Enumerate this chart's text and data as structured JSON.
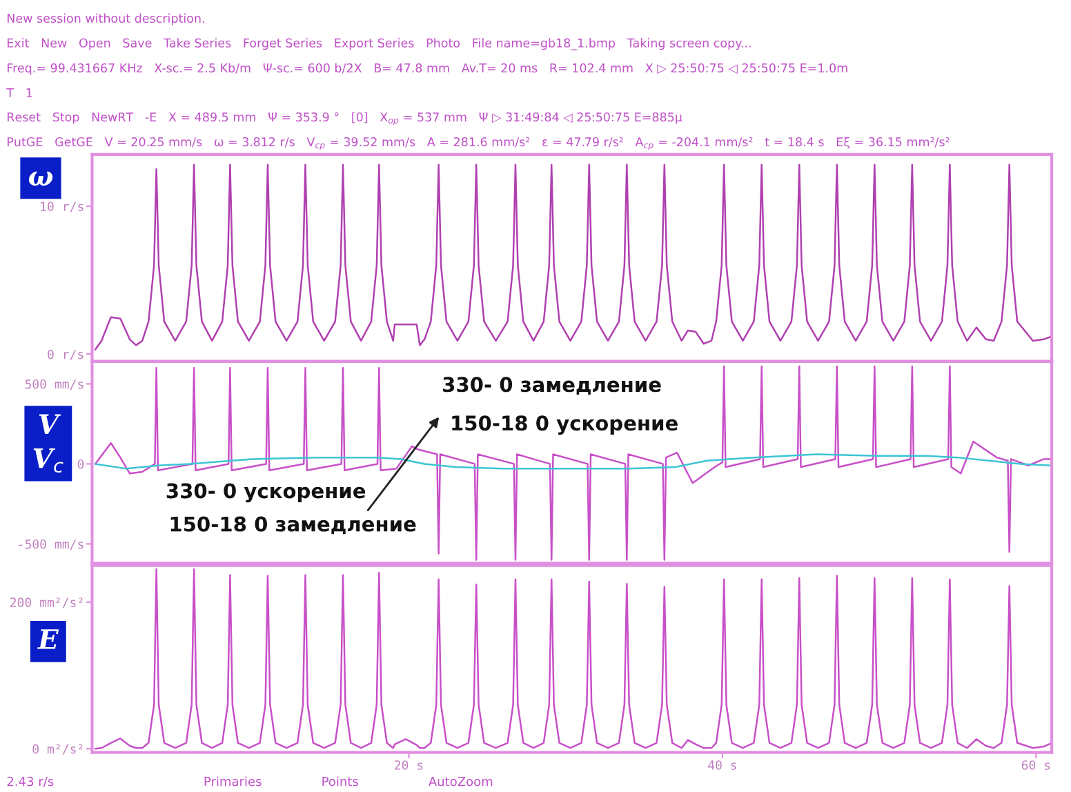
{
  "chart_data": [
    {
      "type": "line",
      "ylabel": "ω",
      "x": [
        0,
        0.4,
        1.0,
        1.6,
        2.2,
        2.6,
        3.0,
        3.4,
        3.75,
        3.9,
        4.05,
        4.4,
        5.1,
        5.8,
        6.15,
        6.3,
        6.45,
        6.8,
        7.45,
        8.1,
        8.45,
        8.6,
        8.75,
        9.1,
        9.8,
        10.5,
        10.85,
        11.0,
        11.15,
        11.5,
        12.2,
        12.9,
        13.25,
        13.4,
        13.55,
        13.9,
        14.6,
        15.3,
        15.65,
        15.8,
        15.95,
        16.3,
        16.95,
        17.6,
        17.95,
        18.1,
        18.25,
        18.6,
        19.0,
        19.1,
        19.8,
        20.5,
        20.7,
        21.0,
        21.4,
        21.75,
        21.9,
        22.05,
        22.4,
        23.1,
        23.8,
        24.15,
        24.3,
        24.45,
        24.8,
        25.55,
        26.3,
        26.65,
        26.8,
        26.95,
        27.3,
        27.95,
        28.6,
        28.95,
        29.1,
        29.25,
        29.6,
        30.3,
        31.0,
        31.35,
        31.5,
        31.65,
        32.0,
        32.7,
        33.4,
        33.75,
        33.9,
        34.05,
        34.4,
        35.1,
        35.8,
        36.15,
        36.3,
        36.45,
        36.8,
        37.4,
        37.8,
        38.3,
        38.8,
        39.3,
        39.6,
        39.95,
        40.1,
        40.25,
        40.6,
        41.3,
        42.0,
        42.35,
        42.5,
        42.65,
        43.0,
        43.7,
        44.4,
        44.75,
        44.9,
        45.05,
        45.4,
        46.1,
        46.8,
        47.15,
        47.3,
        47.45,
        47.8,
        48.5,
        49.2,
        49.55,
        49.7,
        49.85,
        50.2,
        50.9,
        51.6,
        51.95,
        52.1,
        52.25,
        52.6,
        53.3,
        54.0,
        54.35,
        54.5,
        54.65,
        55.0,
        55.6,
        56.2,
        56.8,
        57.3,
        57.8,
        58.15,
        58.3,
        58.45,
        58.8,
        59.8,
        60.5,
        61.0
      ],
      "series": [
        {
          "color": "#b040b0",
          "values": [
            0.3,
            0.9,
            2.5,
            2.4,
            1.0,
            0.6,
            0.9,
            2.2,
            6,
            12.5,
            6,
            2.2,
            0.9,
            2.2,
            6,
            12.8,
            6,
            2.2,
            0.9,
            2.2,
            6,
            12.8,
            6,
            2.2,
            0.9,
            2.2,
            6,
            12.8,
            6,
            2.2,
            0.9,
            2.2,
            6,
            12.8,
            6,
            2.2,
            0.9,
            2.2,
            6,
            12.8,
            6,
            2.2,
            0.9,
            2.2,
            6,
            12.8,
            6,
            2.2,
            0.9,
            2.0,
            2.0,
            2.0,
            0.6,
            1.0,
            2.2,
            6,
            12.8,
            6,
            2.2,
            0.9,
            2.2,
            6,
            12.8,
            6,
            2.2,
            0.9,
            2.2,
            6,
            12.8,
            6,
            2.2,
            0.9,
            2.2,
            6,
            12.8,
            6,
            2.2,
            0.9,
            2.2,
            6,
            12.8,
            6,
            2.2,
            0.9,
            2.2,
            6,
            12.8,
            6,
            2.2,
            0.9,
            2.2,
            6,
            12.8,
            6,
            2.2,
            0.9,
            1.6,
            1.5,
            0.7,
            0.9,
            2.2,
            6,
            12.8,
            6,
            2.2,
            0.9,
            2.2,
            6,
            12.8,
            6,
            2.2,
            0.9,
            2.2,
            6,
            12.8,
            6,
            2.2,
            0.9,
            2.2,
            6,
            12.8,
            6,
            2.2,
            0.9,
            2.2,
            6,
            12.8,
            6,
            2.2,
            0.9,
            2.2,
            6,
            12.8,
            6,
            2.2,
            0.9,
            2.2,
            6,
            12.8,
            6,
            2.2,
            0.9,
            1.8,
            1.0,
            0.9,
            2.2,
            6,
            12.8,
            6,
            2.2,
            0.9,
            1.0,
            1.2
          ]
        }
      ],
      "xlim": [
        -0.2,
        61
      ],
      "ylim": [
        -0.5,
        13.5
      ],
      "yticks": [
        {
          "value": 0,
          "label": "0 r/s"
        },
        {
          "value": 10,
          "label": "10 r/s"
        }
      ],
      "tick_labels": "y",
      "annotations": [
        "New session without description.",
        "Exit   New   Open   Save   Take Series   Forget Series   Export Series   Photo   File name=gb18_1.bmp   Taking screen copy...",
        "Freq.= 99.431667 KHz   X-sc.= 2.5 Kb/m   Ψ-sc.= 600 b/2X   B= 47.8 mm   Av.T= 20 ms   R= 102.4 mm   X ▷ 25:50:75 ◁ 25:50:75 E=1.0m",
        "T   1",
        "Reset   Stop   NewRT   -E   X = 489.5 mm   Ψ = 353.9 °   [0]   X$_{op}$ = 537 mm   Ψ ▷ 31:49:84 ◁ 25:50:75 E=885μ",
        "PutGE   GetGE   V = 20.25 mm/s   ω = 3.812 r/s   V$_{cp}$ = 39.52 mm/s   A = 281.6 mm/s²   ε = 47.79 r/s²   A$_{cp}$ = -204.1 mm/s²   t = 18.4 s   Eξ = 36.15 mm²/s²"
      ]
    },
    {
      "type": "line",
      "ylabel": "V\nV$_{c}$",
      "series": [
        {
          "color": "#c850c8",
          "x": [
            0,
            1.0,
            1.6,
            2.2,
            3.0,
            3.8,
            3.9,
            4.0,
            6.2,
            6.3,
            6.4,
            8.5,
            8.6,
            8.7,
            10.9,
            11.0,
            11.1,
            13.3,
            13.4,
            13.5,
            15.7,
            15.8,
            15.9,
            18.0,
            18.1,
            18.2,
            19.2,
            20.2,
            20.6,
            21.8,
            21.9,
            22.0,
            24.2,
            24.3,
            24.4,
            26.7,
            26.8,
            26.9,
            29.0,
            29.1,
            29.2,
            31.4,
            31.5,
            31.6,
            33.8,
            33.9,
            34.0,
            36.2,
            36.3,
            36.4,
            37.1,
            38.1,
            39.5,
            40.0,
            40.1,
            40.2,
            42.4,
            42.5,
            42.6,
            44.8,
            44.9,
            45.0,
            47.2,
            47.3,
            47.4,
            49.6,
            49.7,
            49.8,
            52.0,
            52.1,
            52.2,
            54.4,
            54.5,
            54.6,
            55.2,
            56.0,
            57.5,
            58.2,
            58.3,
            58.4,
            59.5,
            60.5,
            61.0
          ],
          "values": [
            0,
            130,
            40,
            -60,
            -50,
            0,
            600,
            -40,
            0,
            600,
            -40,
            0,
            600,
            -40,
            0,
            600,
            -40,
            0,
            600,
            -40,
            0,
            600,
            -40,
            0,
            600,
            -40,
            -30,
            110,
            90,
            60,
            -560,
            60,
            0,
            -600,
            60,
            0,
            -600,
            60,
            0,
            -600,
            60,
            0,
            -600,
            60,
            0,
            -600,
            60,
            0,
            -600,
            40,
            70,
            -120,
            -20,
            10,
            610,
            -20,
            30,
            610,
            -20,
            30,
            610,
            -20,
            30,
            610,
            -20,
            30,
            610,
            -20,
            30,
            610,
            -20,
            30,
            610,
            -20,
            -60,
            140,
            40,
            20,
            -550,
            30,
            -10,
            30,
            30
          ]
        },
        {
          "color": "#3cc4d4",
          "x": [
            0,
            2.0,
            4,
            6,
            10,
            14,
            18,
            19.5,
            21,
            23,
            26,
            30,
            34,
            37,
            39,
            42,
            46,
            50,
            53,
            55,
            57,
            59,
            61
          ],
          "values": [
            0,
            -30,
            -10,
            0,
            30,
            40,
            40,
            30,
            0,
            -20,
            -30,
            -30,
            -30,
            -20,
            20,
            40,
            60,
            50,
            50,
            40,
            20,
            0,
            -10
          ]
        }
      ],
      "xlim": [
        -0.2,
        61
      ],
      "ylim": [
        -620,
        640
      ],
      "yticks": [
        {
          "value": -500,
          "label": "-500 mm/s"
        },
        {
          "value": 0,
          "label": "0"
        },
        {
          "value": 500,
          "label": "500 mm/s"
        }
      ],
      "tick_labels": "y",
      "annotations": [
        "330- 0 замедление",
        "150-18 0 ускорение",
        "330- 0 ускорение",
        "150-18 0 замедление"
      ]
    },
    {
      "type": "line",
      "ylabel": "E",
      "x": [
        0,
        0.4,
        1.0,
        1.6,
        2.2,
        2.6,
        3.0,
        3.4,
        3.75,
        3.9,
        4.05,
        4.4,
        5.1,
        5.8,
        6.15,
        6.3,
        6.45,
        6.8,
        7.45,
        8.1,
        8.45,
        8.6,
        8.75,
        9.1,
        9.8,
        10.5,
        10.85,
        11.0,
        11.15,
        11.5,
        12.2,
        12.9,
        13.25,
        13.4,
        13.55,
        13.9,
        14.6,
        15.3,
        15.65,
        15.8,
        15.95,
        16.3,
        16.95,
        17.6,
        17.95,
        18.1,
        18.25,
        18.6,
        19.0,
        19.1,
        19.8,
        20.5,
        20.7,
        21.0,
        21.4,
        21.75,
        21.9,
        22.05,
        22.4,
        23.1,
        23.8,
        24.15,
        24.3,
        24.45,
        24.8,
        25.55,
        26.3,
        26.65,
        26.8,
        26.95,
        27.3,
        27.95,
        28.6,
        28.95,
        29.1,
        29.25,
        29.6,
        30.3,
        31.0,
        31.35,
        31.5,
        31.65,
        32.0,
        32.7,
        33.4,
        33.75,
        33.9,
        34.05,
        34.4,
        35.1,
        35.8,
        36.15,
        36.3,
        36.45,
        36.8,
        37.4,
        37.8,
        38.3,
        38.8,
        39.3,
        39.6,
        39.95,
        40.1,
        40.25,
        40.6,
        41.3,
        42.0,
        42.35,
        42.5,
        42.65,
        43.0,
        43.7,
        44.4,
        44.75,
        44.9,
        45.05,
        45.4,
        46.1,
        46.8,
        47.15,
        47.3,
        47.45,
        47.8,
        48.5,
        49.2,
        49.55,
        49.7,
        49.85,
        50.2,
        50.9,
        51.6,
        51.95,
        52.1,
        52.25,
        52.6,
        53.3,
        54.0,
        54.35,
        54.5,
        54.65,
        55.0,
        55.6,
        56.2,
        56.8,
        57.3,
        57.8,
        58.15,
        58.3,
        58.45,
        58.8,
        59.8,
        60.5,
        61.0
      ],
      "series": [
        {
          "color": "#c850c8",
          "values": [
            0,
            1,
            8,
            14,
            4,
            1,
            1,
            8,
            60,
            245,
            60,
            8,
            1,
            8,
            60,
            245,
            60,
            8,
            1,
            8,
            60,
            237,
            60,
            8,
            1,
            8,
            60,
            236,
            60,
            8,
            1,
            8,
            60,
            237,
            60,
            8,
            1,
            8,
            60,
            237,
            60,
            8,
            1,
            8,
            60,
            240,
            60,
            8,
            1,
            6,
            13,
            5,
            1,
            1,
            8,
            60,
            231,
            60,
            8,
            1,
            8,
            60,
            224,
            60,
            8,
            1,
            8,
            60,
            231,
            60,
            8,
            1,
            8,
            60,
            231,
            60,
            8,
            1,
            8,
            60,
            228,
            60,
            8,
            1,
            8,
            60,
            225,
            60,
            8,
            1,
            8,
            60,
            221,
            60,
            8,
            1,
            12,
            6,
            1,
            1,
            8,
            60,
            231,
            60,
            8,
            1,
            8,
            60,
            231,
            60,
            8,
            1,
            8,
            60,
            233,
            60,
            8,
            1,
            8,
            60,
            236,
            60,
            8,
            1,
            8,
            60,
            233,
            60,
            8,
            1,
            8,
            60,
            233,
            60,
            8,
            1,
            8,
            60,
            231,
            60,
            8,
            1,
            13,
            4,
            1,
            8,
            60,
            222,
            60,
            8,
            1,
            3,
            8
          ]
        }
      ],
      "xlim": [
        -0.2,
        61
      ],
      "ylim": [
        -5,
        250
      ],
      "xticks": [
        {
          "value": 20,
          "label": "20 s"
        },
        {
          "value": 40,
          "label": "40 s"
        },
        {
          "value": 60,
          "label": "60 s"
        }
      ],
      "yticks": [
        {
          "value": 0,
          "label": "0 m²/s²"
        },
        {
          "value": 200,
          "label": "200 mm²/s²"
        }
      ],
      "annotations": [
        "2.43 r/s",
        "Primaries",
        "Points",
        "AutoZoom"
      ]
    }
  ]
}
